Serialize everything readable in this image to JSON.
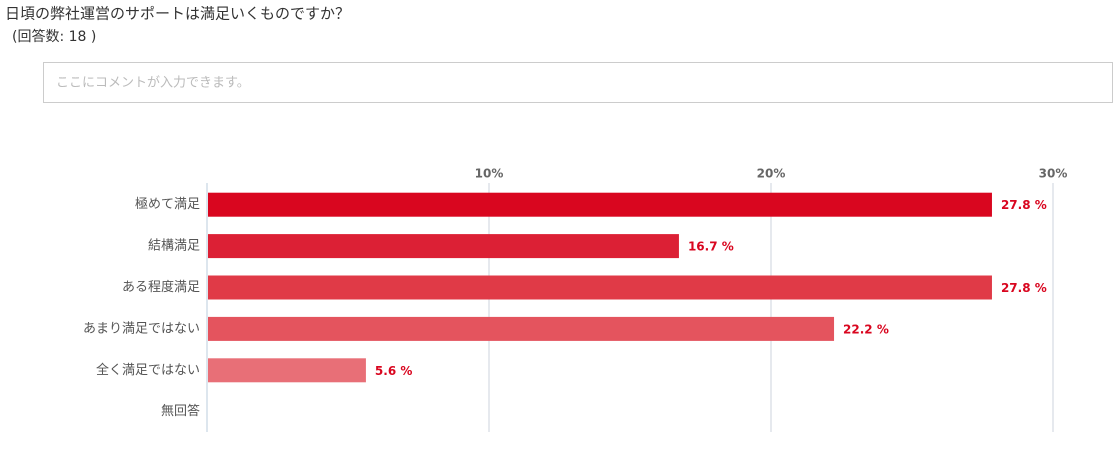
{
  "question": "日頃の弊社運営のサポートは満足いくものですか？",
  "response_count": "(回答数: 18 )",
  "comment_placeholder": "ここにコメントが入力できます。",
  "chart_data": {
    "type": "hbar",
    "categories": [
      "極めて満足",
      "結構満足",
      "ある程度満足",
      "あまり満足ではない",
      "全く満足ではない",
      "無回答"
    ],
    "values": [
      27.8,
      16.7,
      27.8,
      22.2,
      5.6,
      0
    ],
    "value_labels": [
      "27.8 %",
      "16.7 %",
      "27.8 %",
      "22.2 %",
      "5.6 %",
      null
    ],
    "colors": [
      "#d9061f",
      "#dc2035",
      "#e03a47",
      "#e4545e",
      "#e86f77",
      "#ec8a90"
    ],
    "xlim": [
      0,
      30
    ],
    "xticks": [
      {
        "value": 10,
        "label": "10%"
      },
      {
        "value": 20,
        "label": "20%"
      },
      {
        "value": 30,
        "label": "30%"
      }
    ],
    "grid": true
  }
}
